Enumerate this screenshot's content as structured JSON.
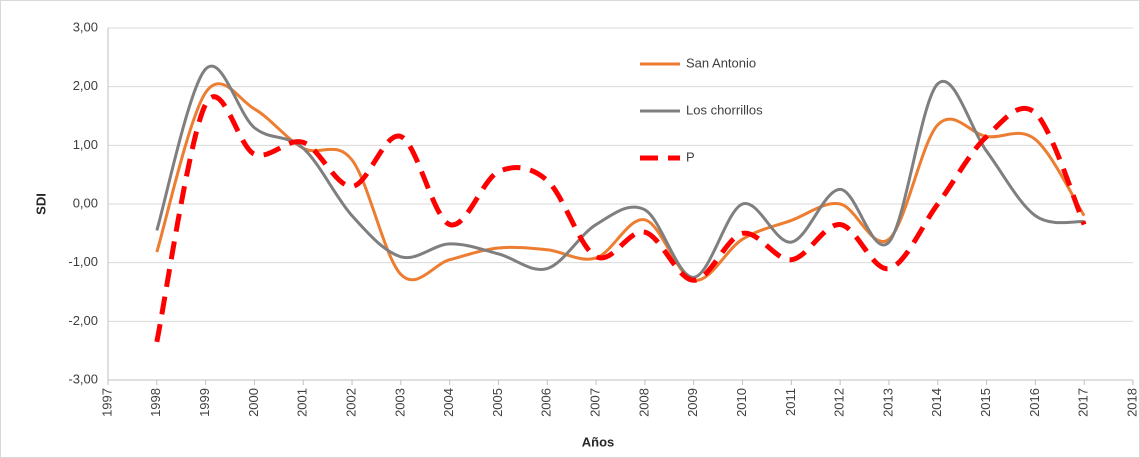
{
  "chart_data": {
    "type": "line",
    "x_label": "Años",
    "y_label": "SDI",
    "x": [
      1998,
      1999,
      2000,
      2001,
      2002,
      2003,
      2004,
      2005,
      2006,
      2007,
      2008,
      2009,
      2010,
      2011,
      2012,
      2013,
      2014,
      2015,
      2016,
      2017
    ],
    "series": [
      {
        "name": "San Antonio",
        "color": "#ed7d31",
        "linestyle": "solid",
        "values": [
          -0.82,
          1.9,
          1.62,
          0.95,
          0.75,
          -1.2,
          -0.95,
          -0.75,
          -0.78,
          -0.92,
          -0.27,
          -1.3,
          -0.6,
          -0.28,
          0.0,
          -0.6,
          1.35,
          1.15,
          1.1,
          -0.2
        ]
      },
      {
        "name": "Los chorrillos",
        "color": "#7f7f7f",
        "linestyle": "solid",
        "values": [
          -0.45,
          2.3,
          1.3,
          0.95,
          -0.2,
          -0.9,
          -0.68,
          -0.85,
          -1.1,
          -0.35,
          -0.1,
          -1.25,
          0.0,
          -0.65,
          0.25,
          -0.65,
          2.05,
          0.9,
          -0.2,
          -0.3
        ]
      },
      {
        "name": "P",
        "color": "#ff0000",
        "linestyle": "dashed",
        "values": [
          -2.35,
          1.7,
          0.85,
          1.05,
          0.3,
          1.15,
          -0.35,
          0.55,
          0.4,
          -0.9,
          -0.48,
          -1.3,
          -0.5,
          -0.95,
          -0.35,
          -1.1,
          0.0,
          1.15,
          1.55,
          -0.35
        ]
      }
    ],
    "xlim": [
      1997,
      2018
    ],
    "xticks": [
      1997,
      1998,
      1999,
      2000,
      2001,
      2002,
      2003,
      2004,
      2005,
      2006,
      2007,
      2008,
      2009,
      2010,
      2011,
      2012,
      2013,
      2014,
      2015,
      2016,
      2017,
      2018
    ],
    "ylim": [
      -3,
      3
    ],
    "yticks": [
      {
        "value": -3,
        "label": "-3,00"
      },
      {
        "value": -2,
        "label": "-2,00"
      },
      {
        "value": -1,
        "label": "-1,00"
      },
      {
        "value": 0,
        "label": "0,00"
      },
      {
        "value": 1,
        "label": "1,00"
      },
      {
        "value": 2,
        "label": "2,00"
      },
      {
        "value": 3,
        "label": "3,00"
      }
    ],
    "grid": true,
    "smooth": true,
    "legend": "upper right"
  }
}
